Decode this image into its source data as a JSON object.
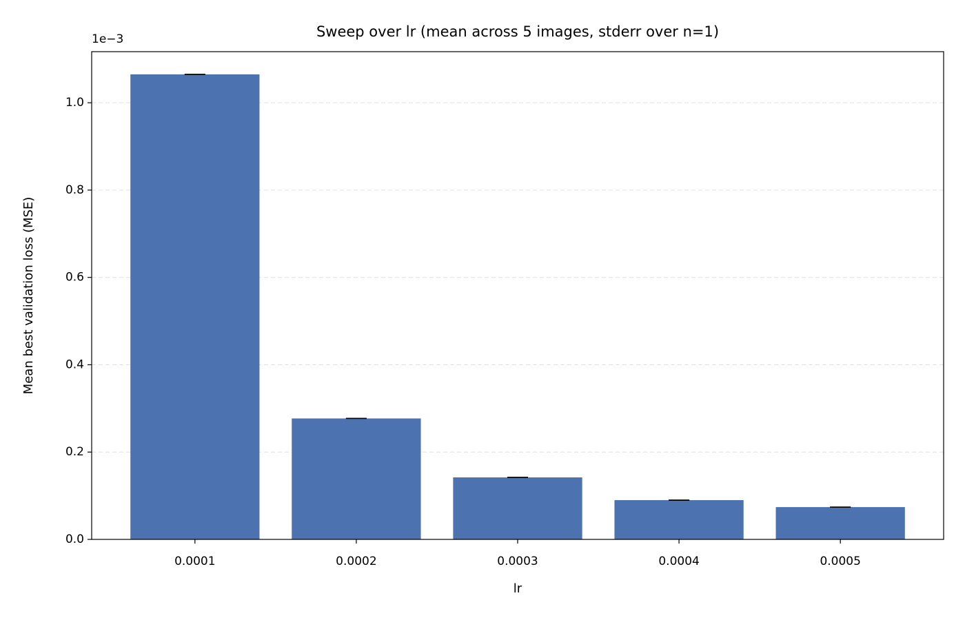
{
  "chart_data": {
    "type": "bar",
    "title": "Sweep over lr (mean across 5 images, stderr over n=1)",
    "x_label": "lr",
    "y_label": "Mean best validation loss (MSE)",
    "y_offset_label": "1e−3",
    "categories": [
      "0.0001",
      "0.0002",
      "0.0003",
      "0.0004",
      "0.0005"
    ],
    "values": [
      1.065,
      0.277,
      0.142,
      0.09,
      0.074
    ],
    "errors": [
      0,
      0,
      0,
      0,
      0
    ],
    "color": "#4c72b0",
    "ylim": [
      0,
      1.117
    ],
    "yticks": [
      {
        "value": 0,
        "label": "0.0"
      },
      0.2,
      0.4,
      0.6,
      0.8,
      {
        "value": 1,
        "label": "1.0"
      }
    ],
    "grid": true
  }
}
